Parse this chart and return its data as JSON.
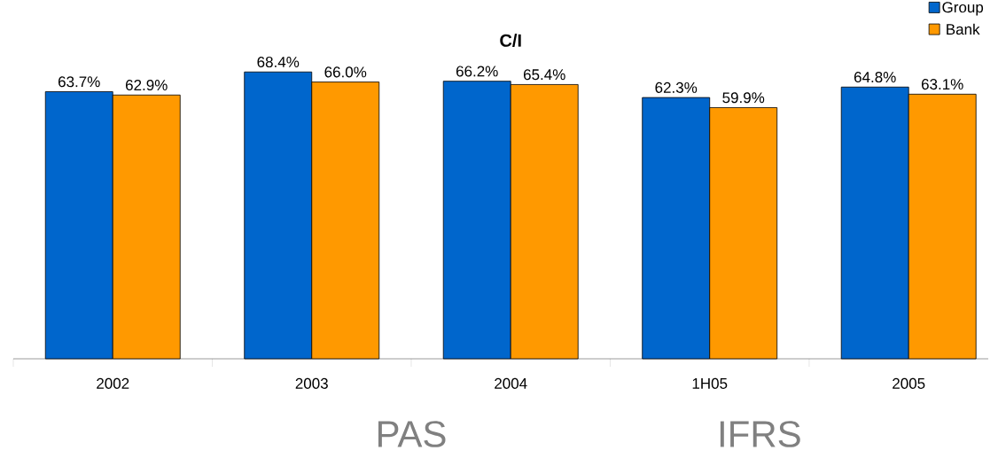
{
  "chart_data": {
    "type": "bar",
    "title": "C/I",
    "categories": [
      "2002",
      "2003",
      "2004",
      "1H05",
      "2005"
    ],
    "series": [
      {
        "name": "Group",
        "color": "#0066cc",
        "values": [
          63.7,
          68.4,
          66.2,
          62.3,
          64.8
        ],
        "value_labels": [
          "63.7%",
          "68.4%",
          "66.2%",
          "62.3%",
          "64.8%"
        ]
      },
      {
        "name": "Bank",
        "color": "#ff9900",
        "values": [
          62.9,
          66.0,
          65.4,
          59.9,
          63.1
        ],
        "value_labels": [
          "62.9%",
          "66.0%",
          "65.4%",
          "59.9%",
          "63.1%"
        ]
      }
    ],
    "legend": "top right",
    "grid": false,
    "tick_labels": "x",
    "annotations": [
      "PAS",
      "IFRS"
    ]
  }
}
